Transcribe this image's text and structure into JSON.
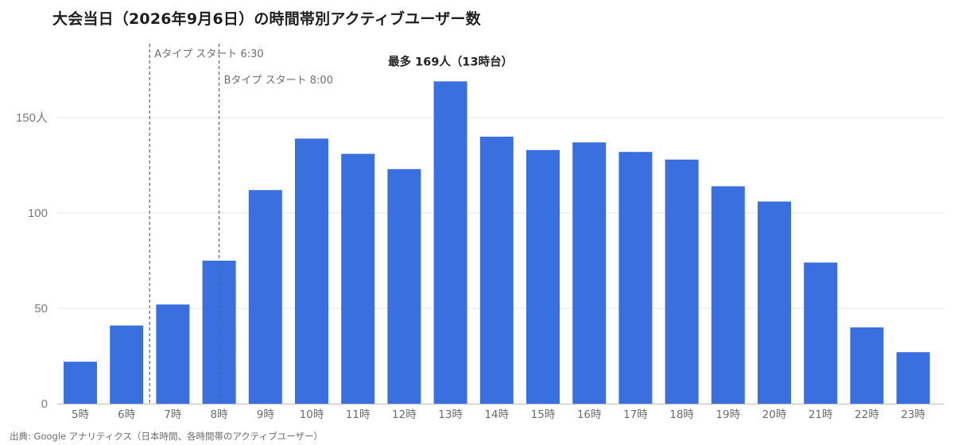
{
  "title": "大会当日（2026年9月6日）の時間帯別アクティブユーザー数",
  "source": "出典: Google アナリティクス（日本時間、各時間帯のアクティブユーザー）",
  "colors": {
    "bar": "#3a6fdf",
    "grid": "#e3e3e3",
    "axis": "#bdbdbd",
    "marker": "#666666"
  },
  "chart_data": {
    "type": "bar",
    "title": "大会当日（2026年9月6日）の時間帯別アクティブユーザー数",
    "xlabel": "",
    "ylabel": "",
    "categories": [
      "5時",
      "6時",
      "7時",
      "8時",
      "9時",
      "10時",
      "11時",
      "12時",
      "13時",
      "14時",
      "15時",
      "16時",
      "17時",
      "18時",
      "19時",
      "20時",
      "21時",
      "22時",
      "23時"
    ],
    "values": [
      22,
      41,
      52,
      75,
      112,
      139,
      131,
      123,
      169,
      140,
      133,
      137,
      132,
      128,
      114,
      106,
      74,
      40,
      27
    ],
    "ylim": [
      0,
      175
    ],
    "yticks": [
      {
        "value": 0,
        "label": "0"
      },
      {
        "value": 50,
        "label": "50"
      },
      {
        "value": 100,
        "label": "100"
      },
      {
        "value": 150,
        "label": "150人"
      }
    ],
    "grid": true,
    "legend": "none",
    "markers": [
      {
        "x": 6.5,
        "label": "Aタイプ スタート 6:30"
      },
      {
        "x": 8.0,
        "label": "Bタイプ スタート 8:00"
      }
    ],
    "peak_annotation": {
      "category": "13時",
      "label": "最多 169人（13時台）"
    }
  }
}
